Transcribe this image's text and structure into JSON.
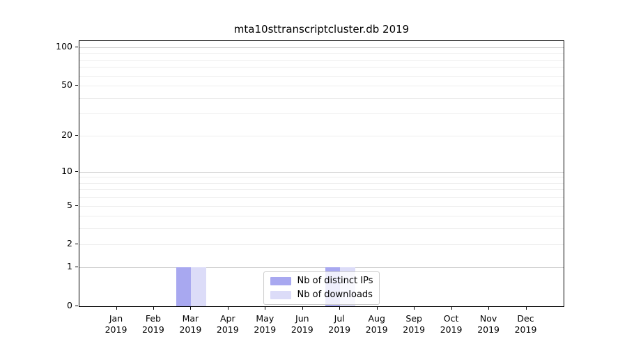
{
  "chart_data": {
    "type": "bar",
    "title": "mta10sttranscriptcluster.db 2019",
    "categories": [
      "Jan",
      "Feb",
      "Mar",
      "Apr",
      "May",
      "Jun",
      "Jul",
      "Aug",
      "Sep",
      "Oct",
      "Nov",
      "Dec"
    ],
    "x_tick_year": "2019",
    "series": [
      {
        "name": "Nb of distinct IPs",
        "color": "#a8a8f0",
        "values": [
          0,
          0,
          1,
          0,
          0,
          0,
          1,
          0,
          0,
          0,
          0,
          0
        ]
      },
      {
        "name": "Nb of downloads",
        "color": "#dcdcf8",
        "values": [
          0,
          0,
          1,
          0,
          0,
          0,
          1,
          0,
          0,
          0,
          0,
          0
        ]
      }
    ],
    "yscale": "log1p",
    "ylim": [
      0,
      115
    ],
    "y_tick_labels": [
      "0",
      "1",
      "2",
      "5",
      "10",
      "20",
      "50",
      "100"
    ],
    "y_tick_values": [
      0,
      1,
      2,
      5,
      10,
      20,
      50,
      100
    ],
    "y_major_gridlines": [
      1,
      10,
      100
    ],
    "y_minor_gridlines": [
      2,
      3,
      4,
      5,
      6,
      7,
      8,
      9,
      20,
      30,
      40,
      50,
      60,
      70,
      80,
      90
    ],
    "grid": "horizontal",
    "legend_position": "lower center",
    "legend_labels": [
      "Nb of distinct IPs",
      "Nb of downloads"
    ]
  },
  "colors": {
    "grid_major": "#cdcdcd",
    "grid_minor": "#ededed",
    "axis": "#000000",
    "background": "#ffffff"
  }
}
